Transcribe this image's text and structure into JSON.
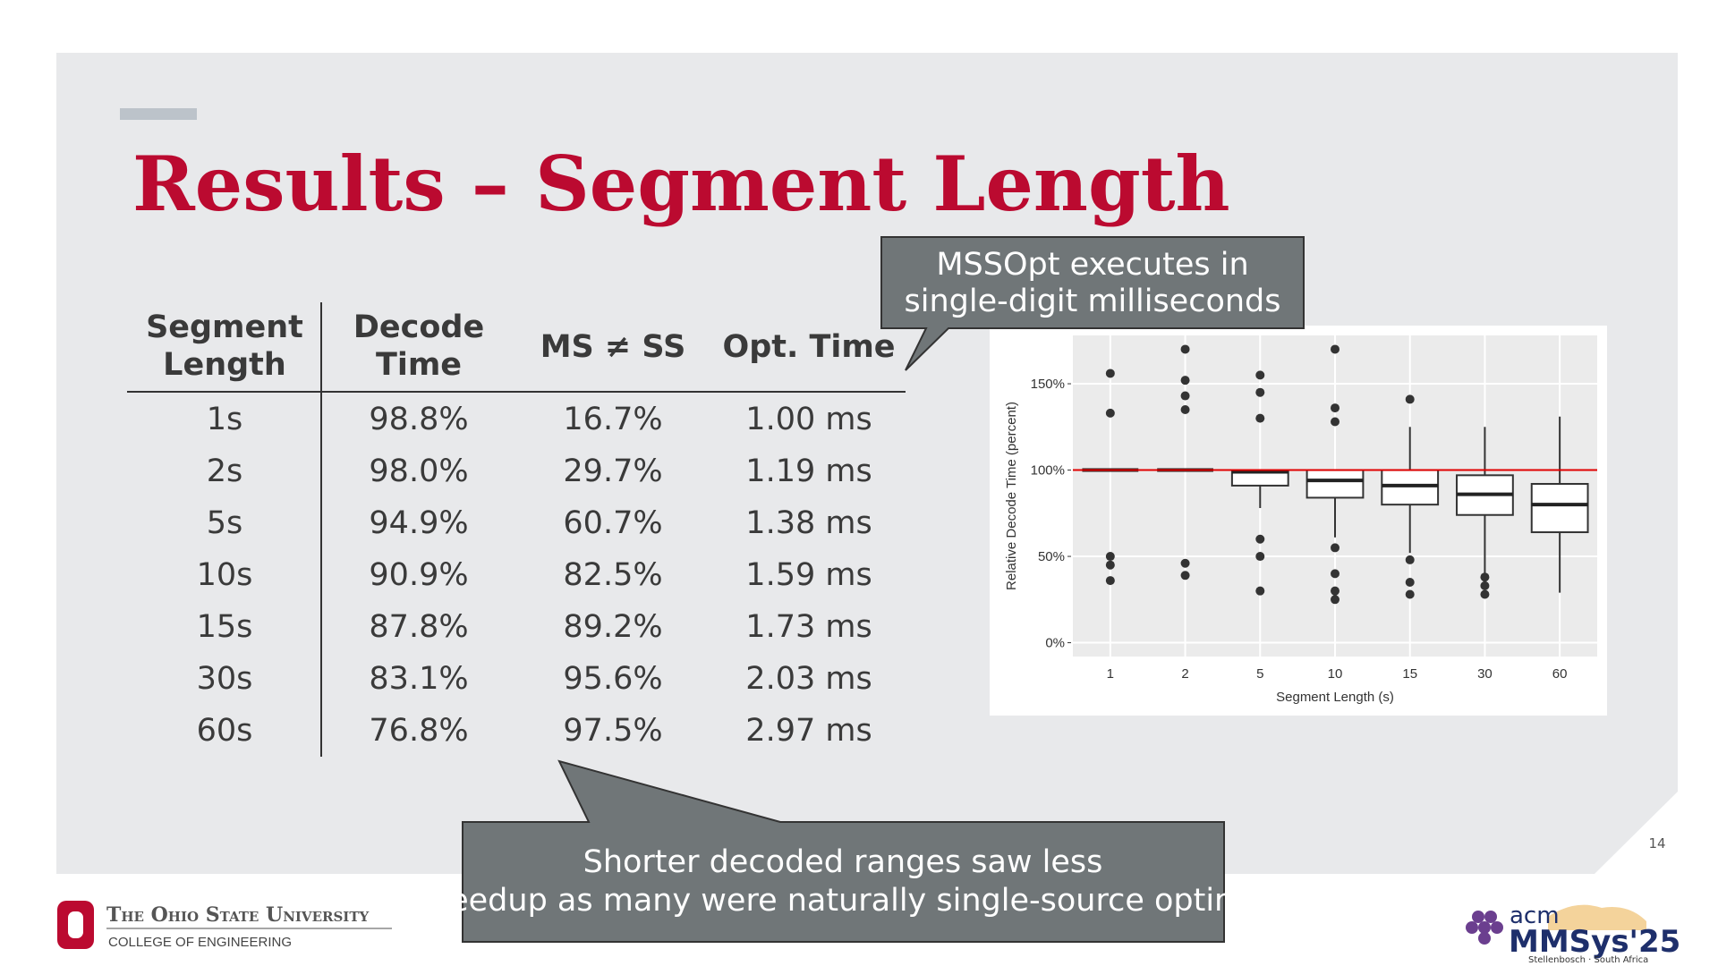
{
  "header": {
    "title": "Results – Segment Length"
  },
  "table": {
    "columns": [
      "Segment Length",
      "Decode Time",
      "MS ≠ SS",
      "Opt. Time"
    ],
    "rows": [
      [
        "1s",
        "98.8%",
        "16.7%",
        "1.00 ms"
      ],
      [
        "2s",
        "98.0%",
        "29.7%",
        "1.19 ms"
      ],
      [
        "5s",
        "94.9%",
        "60.7%",
        "1.38 ms"
      ],
      [
        "10s",
        "90.9%",
        "82.5%",
        "1.59 ms"
      ],
      [
        "15s",
        "87.8%",
        "89.2%",
        "1.73 ms"
      ],
      [
        "30s",
        "83.1%",
        "95.6%",
        "2.03 ms"
      ],
      [
        "60s",
        "76.8%",
        "97.5%",
        "2.97 ms"
      ]
    ]
  },
  "callouts": [
    "MSSOpt executes in single-digit milliseconds",
    "Shorter decoded ranges saw less speedup as many were naturally single-source optimal"
  ],
  "chart_data": {
    "type": "box",
    "x_label": "Segment Length (s)",
    "y_label": "Relative Decode Time (percent)",
    "categories": [
      "1",
      "2",
      "5",
      "10",
      "15",
      "30",
      "60"
    ],
    "boxes": [
      {
        "low": 100,
        "q1": 100,
        "median": 100,
        "q3": 100,
        "high": 100,
        "outliers": [
          156,
          133,
          50,
          45,
          36
        ]
      },
      {
        "low": 100,
        "q1": 100,
        "median": 100,
        "q3": 100,
        "high": 100,
        "outliers": [
          170,
          152,
          143,
          135,
          46,
          39
        ]
      },
      {
        "low": 78,
        "q1": 91,
        "median": 99,
        "q3": 100,
        "high": 100,
        "outliers": [
          155,
          145,
          130,
          60,
          50,
          30
        ]
      },
      {
        "low": 61,
        "q1": 84,
        "median": 94,
        "q3": 100,
        "high": 100,
        "outliers": [
          170,
          136,
          128,
          55,
          40,
          30,
          25
        ]
      },
      {
        "low": 52,
        "q1": 80,
        "median": 91,
        "q3": 100,
        "high": 125,
        "outliers": [
          141,
          48,
          35,
          28
        ]
      },
      {
        "low": 40,
        "q1": 74,
        "median": 86,
        "q3": 97,
        "high": 125,
        "outliers": [
          38,
          33,
          28
        ]
      },
      {
        "low": 29,
        "q1": 64,
        "median": 80,
        "q3": 92,
        "high": 131,
        "outliers": []
      }
    ],
    "reference_line": 100,
    "reference_color": "#e00000",
    "ylim": [
      -8,
      178
    ],
    "yticks": [
      {
        "value": 0,
        "label": "0%"
      },
      {
        "value": 50,
        "label": "50%"
      },
      {
        "value": 100,
        "label": "100%"
      },
      {
        "value": 150,
        "label": "150%"
      }
    ],
    "grid": true
  },
  "footer": {
    "page": "14",
    "university": "The Ohio State University",
    "college": "COLLEGE OF ENGINEERING",
    "acm": "acm",
    "conference": "MMSys'25",
    "location": "Stellenbosch · South Africa"
  }
}
